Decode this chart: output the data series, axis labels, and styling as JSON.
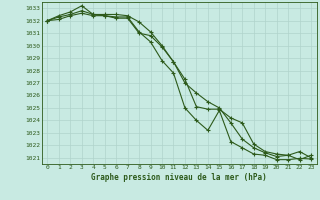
{
  "hours": [
    0,
    1,
    2,
    3,
    4,
    5,
    6,
    7,
    8,
    9,
    10,
    11,
    12,
    13,
    14,
    15,
    16,
    17,
    18,
    19,
    20,
    21,
    22,
    23
  ],
  "line1": [
    1032.0,
    1032.3,
    1032.5,
    1032.8,
    1032.5,
    1032.4,
    1032.3,
    1032.3,
    1031.1,
    1030.3,
    1028.8,
    1027.8,
    1025.0,
    1024.0,
    1023.2,
    1024.8,
    1022.3,
    1021.8,
    1021.3,
    1021.2,
    1020.85,
    1020.85,
    1020.95,
    1020.9
  ],
  "line2": [
    1032.0,
    1032.4,
    1032.7,
    1033.2,
    1032.5,
    1032.5,
    1032.5,
    1032.4,
    1031.9,
    1031.1,
    1030.0,
    1028.7,
    1027.3,
    1025.1,
    1024.9,
    1024.9,
    1024.2,
    1023.8,
    1022.1,
    1021.5,
    1021.3,
    1021.2,
    1020.85,
    1021.2
  ],
  "line3": [
    1032.0,
    1032.1,
    1032.4,
    1032.6,
    1032.4,
    1032.4,
    1032.2,
    1032.2,
    1031.0,
    1030.8,
    1029.9,
    1028.7,
    1027.0,
    1026.2,
    1025.5,
    1025.0,
    1023.8,
    1022.5,
    1021.8,
    1021.4,
    1021.1,
    1021.2,
    1021.5,
    1021.0
  ],
  "ylim_min": 1020.5,
  "ylim_max": 1033.5,
  "yticks": [
    1021,
    1022,
    1023,
    1024,
    1025,
    1026,
    1027,
    1028,
    1029,
    1030,
    1031,
    1032,
    1033
  ],
  "line_color": "#2d5a1b",
  "bg_color": "#c8eae2",
  "grid_color": "#b0d4cc",
  "xlabel": "Graphe pression niveau de la mer (hPa)",
  "marker": "+",
  "markersize": 3.5,
  "linewidth": 0.8,
  "tick_fontsize": 4.5,
  "xlabel_fontsize": 5.5
}
